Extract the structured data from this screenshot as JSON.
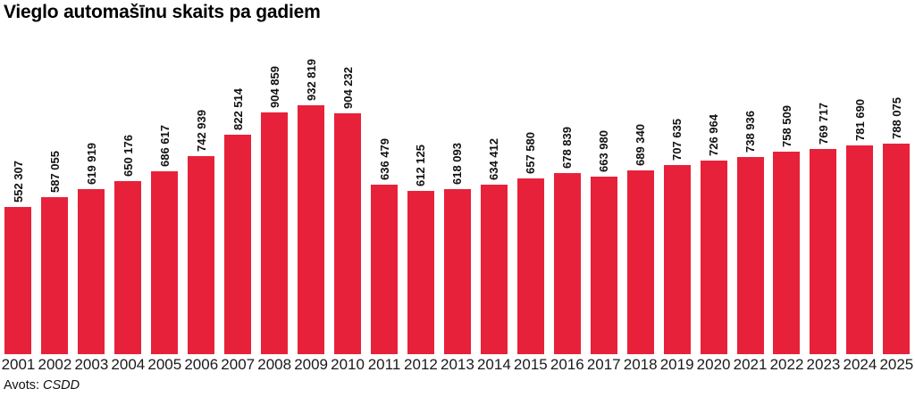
{
  "chart_data": {
    "type": "bar",
    "title": "Vieglo automašīnu skaits pa gadiem",
    "categories": [
      "2001",
      "2002",
      "2003",
      "2004",
      "2005",
      "2006",
      "2007",
      "2008",
      "2009",
      "2010",
      "2011",
      "2012",
      "2013",
      "2014",
      "2015",
      "2016",
      "2017",
      "2018",
      "2019",
      "2020",
      "2021",
      "2022",
      "2023",
      "2024",
      "2025"
    ],
    "values": [
      552307,
      587055,
      619919,
      650176,
      686617,
      742939,
      822514,
      904859,
      932819,
      904232,
      636479,
      612125,
      618093,
      634412,
      657580,
      678839,
      663980,
      689340,
      707635,
      726964,
      738936,
      758509,
      769717,
      781690,
      788075
    ],
    "value_labels": [
      "552 307",
      "587 055",
      "619 919",
      "650 176",
      "686 617",
      "742 939",
      "822 514",
      "904 859",
      "932 819",
      "904 232",
      "636 479",
      "612 125",
      "618 093",
      "634 412",
      "657 580",
      "678 839",
      "663 980",
      "689 340",
      "707 635",
      "726 964",
      "738 936",
      "758 509",
      "769 717",
      "781 690",
      "788 075"
    ],
    "xlabel": "",
    "ylabel": "",
    "ylim": [
      0,
      932819
    ],
    "grid": false,
    "legend": false,
    "bar_color": "#e8213a",
    "label_rotation": "vertical",
    "source_prefix": "Avots:",
    "source_name": "CSDD"
  }
}
